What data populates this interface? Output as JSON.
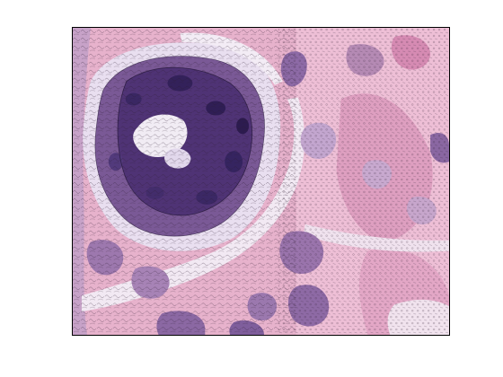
{
  "figure": {
    "background_color": "#ffffff",
    "frame_color": "#000000",
    "image_kind": "histology-micrograph-posterized",
    "palette": {
      "pink_light": "#eec3d7",
      "pink_mid": "#e0a4c2",
      "pink_hot": "#d78fb4",
      "mauve": "#b98ab5",
      "lilac": "#c9b3d6",
      "lavender_pale": "#ece4f0",
      "purple_mid": "#8e69a3",
      "purple_deep": "#5d3e80",
      "purple_darkest": "#3a2560",
      "white_gap": "#f4eef6"
    }
  }
}
